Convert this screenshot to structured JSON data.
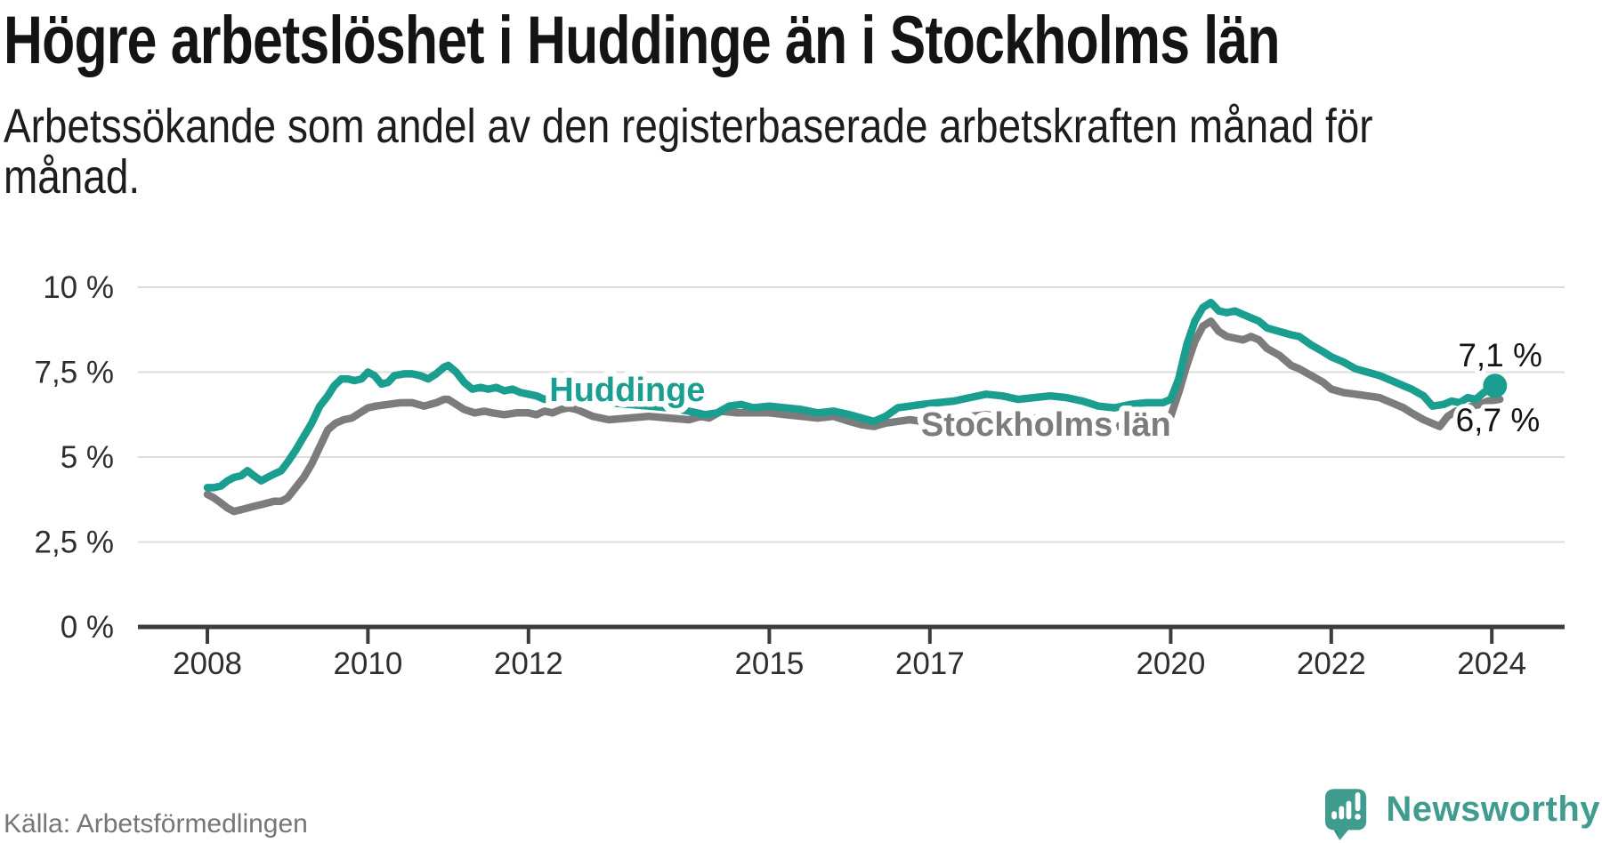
{
  "title": "Högre arbetslöshet i Huddinge än i Stockholms län",
  "subtitle": "Arbetssökande som andel av den registerbaserade arbetskraften månad för månad.",
  "source": "Källa: Arbetsförmedlingen",
  "branding": {
    "name": "Newsworthy",
    "icon": "newsworthy-logo-icon"
  },
  "colors": {
    "huddinge": "#1a9e8f",
    "stockholm": "#7c7c7c",
    "grid": "#dcdcdc",
    "axis": "#3c3c3c",
    "axis_text": "#2e2e2e",
    "annotation": "#141414",
    "brand": "#3f9c8e",
    "source_text": "#767676",
    "halo": "#ffffff"
  },
  "chart_data": {
    "type": "line",
    "unit": "%",
    "x_axis": {
      "tick_labels": [
        "2008",
        "2010",
        "2012",
        "2015",
        "2017",
        "2020",
        "2022",
        "2024"
      ],
      "tick_values": [
        2008,
        2010,
        2012,
        2015,
        2017,
        2020,
        2022,
        2024
      ],
      "range": [
        2008,
        2024.9
      ]
    },
    "y_axis": {
      "tick_labels": [
        "10 %",
        "7,5 %",
        "5 %",
        "2,5 %",
        "0 %"
      ],
      "tick_values": [
        10,
        7.5,
        5,
        2.5,
        0
      ],
      "range": [
        0,
        10
      ],
      "grid": true
    },
    "series": [
      {
        "name": "Stockholms län",
        "color": "#7c7c7c",
        "inline_label": {
          "text": "Stockholms län",
          "x": 2016.89,
          "y": 5.63
        },
        "end_annotation": "6,7 %",
        "last_value": 6.7,
        "points": [
          [
            2008.0,
            3.9
          ],
          [
            2008.08,
            3.8
          ],
          [
            2008.17,
            3.65
          ],
          [
            2008.25,
            3.5
          ],
          [
            2008.33,
            3.4
          ],
          [
            2008.42,
            3.45
          ],
          [
            2008.5,
            3.5
          ],
          [
            2008.58,
            3.55
          ],
          [
            2008.67,
            3.6
          ],
          [
            2008.75,
            3.65
          ],
          [
            2008.83,
            3.7
          ],
          [
            2008.92,
            3.7
          ],
          [
            2009.0,
            3.8
          ],
          [
            2009.1,
            4.1
          ],
          [
            2009.2,
            4.4
          ],
          [
            2009.3,
            4.8
          ],
          [
            2009.4,
            5.3
          ],
          [
            2009.5,
            5.8
          ],
          [
            2009.6,
            6.0
          ],
          [
            2009.7,
            6.1
          ],
          [
            2009.8,
            6.15
          ],
          [
            2009.9,
            6.3
          ],
          [
            2010.0,
            6.45
          ],
          [
            2010.1,
            6.5
          ],
          [
            2010.25,
            6.55
          ],
          [
            2010.4,
            6.6
          ],
          [
            2010.55,
            6.6
          ],
          [
            2010.7,
            6.5
          ],
          [
            2010.85,
            6.6
          ],
          [
            2010.95,
            6.7
          ],
          [
            2011.0,
            6.7
          ],
          [
            2011.1,
            6.55
          ],
          [
            2011.2,
            6.4
          ],
          [
            2011.33,
            6.3
          ],
          [
            2011.45,
            6.35
          ],
          [
            2011.55,
            6.3
          ],
          [
            2011.7,
            6.25
          ],
          [
            2011.85,
            6.3
          ],
          [
            2012.0,
            6.3
          ],
          [
            2012.1,
            6.25
          ],
          [
            2012.2,
            6.35
          ],
          [
            2012.3,
            6.3
          ],
          [
            2012.4,
            6.4
          ],
          [
            2012.5,
            6.45
          ],
          [
            2012.6,
            6.4
          ],
          [
            2012.8,
            6.2
          ],
          [
            2013.0,
            6.1
          ],
          [
            2013.25,
            6.15
          ],
          [
            2013.5,
            6.2
          ],
          [
            2013.75,
            6.15
          ],
          [
            2014.0,
            6.1
          ],
          [
            2014.15,
            6.2
          ],
          [
            2014.25,
            6.15
          ],
          [
            2014.4,
            6.35
          ],
          [
            2014.6,
            6.3
          ],
          [
            2014.8,
            6.3
          ],
          [
            2015.0,
            6.3
          ],
          [
            2015.2,
            6.25
          ],
          [
            2015.4,
            6.2
          ],
          [
            2015.6,
            6.15
          ],
          [
            2015.8,
            6.2
          ],
          [
            2016.0,
            6.05
          ],
          [
            2016.15,
            5.95
          ],
          [
            2016.3,
            5.9
          ],
          [
            2016.45,
            6.0
          ],
          [
            2016.6,
            6.05
          ],
          [
            2016.75,
            6.1
          ],
          [
            2016.9,
            6.05
          ],
          [
            2017.1,
            6.1
          ],
          [
            2017.3,
            6.15
          ],
          [
            2017.5,
            6.2
          ],
          [
            2017.7,
            6.25
          ],
          [
            2017.9,
            6.2
          ],
          [
            2018.1,
            6.1
          ],
          [
            2018.3,
            6.15
          ],
          [
            2018.5,
            6.15
          ],
          [
            2018.7,
            6.1
          ],
          [
            2018.9,
            6.0
          ],
          [
            2019.1,
            5.95
          ],
          [
            2019.3,
            5.9
          ],
          [
            2019.5,
            5.95
          ],
          [
            2019.7,
            6.0
          ],
          [
            2019.9,
            6.1
          ],
          [
            2020.0,
            6.2
          ],
          [
            2020.1,
            6.9
          ],
          [
            2020.2,
            7.7
          ],
          [
            2020.3,
            8.4
          ],
          [
            2020.4,
            8.85
          ],
          [
            2020.5,
            9.0
          ],
          [
            2020.6,
            8.7
          ],
          [
            2020.7,
            8.55
          ],
          [
            2020.8,
            8.5
          ],
          [
            2020.9,
            8.45
          ],
          [
            2021.0,
            8.55
          ],
          [
            2021.1,
            8.45
          ],
          [
            2021.2,
            8.2
          ],
          [
            2021.35,
            8.0
          ],
          [
            2021.5,
            7.7
          ],
          [
            2021.6,
            7.6
          ],
          [
            2021.75,
            7.4
          ],
          [
            2021.9,
            7.2
          ],
          [
            2022.0,
            7.0
          ],
          [
            2022.15,
            6.9
          ],
          [
            2022.3,
            6.85
          ],
          [
            2022.45,
            6.8
          ],
          [
            2022.6,
            6.75
          ],
          [
            2022.75,
            6.6
          ],
          [
            2022.9,
            6.45
          ],
          [
            2023.0,
            6.3
          ],
          [
            2023.15,
            6.1
          ],
          [
            2023.35,
            5.9
          ],
          [
            2023.45,
            6.2
          ],
          [
            2023.55,
            6.35
          ],
          [
            2023.65,
            6.4
          ],
          [
            2023.75,
            6.5
          ],
          [
            2023.85,
            6.55
          ],
          [
            2023.95,
            6.65
          ],
          [
            2024.1,
            6.7
          ]
        ]
      },
      {
        "name": "Huddinge",
        "color": "#1a9e8f",
        "inline_label": {
          "text": "Huddinge",
          "x": 2012.26,
          "y": 6.65
        },
        "end_annotation": "7,1 %",
        "last_value": 7.1,
        "end_dot": {
          "x": 2024.04,
          "y": 7.1
        },
        "points": [
          [
            2008.0,
            4.1
          ],
          [
            2008.08,
            4.1
          ],
          [
            2008.17,
            4.15
          ],
          [
            2008.25,
            4.3
          ],
          [
            2008.33,
            4.4
          ],
          [
            2008.42,
            4.45
          ],
          [
            2008.5,
            4.6
          ],
          [
            2008.58,
            4.45
          ],
          [
            2008.67,
            4.3
          ],
          [
            2008.75,
            4.4
          ],
          [
            2008.83,
            4.5
          ],
          [
            2008.92,
            4.6
          ],
          [
            2009.0,
            4.85
          ],
          [
            2009.1,
            5.2
          ],
          [
            2009.2,
            5.6
          ],
          [
            2009.3,
            6.0
          ],
          [
            2009.4,
            6.5
          ],
          [
            2009.5,
            6.8
          ],
          [
            2009.58,
            7.1
          ],
          [
            2009.67,
            7.3
          ],
          [
            2009.75,
            7.3
          ],
          [
            2009.83,
            7.25
          ],
          [
            2009.92,
            7.3
          ],
          [
            2010.0,
            7.5
          ],
          [
            2010.08,
            7.4
          ],
          [
            2010.17,
            7.15
          ],
          [
            2010.25,
            7.2
          ],
          [
            2010.33,
            7.4
          ],
          [
            2010.45,
            7.45
          ],
          [
            2010.55,
            7.45
          ],
          [
            2010.65,
            7.4
          ],
          [
            2010.75,
            7.3
          ],
          [
            2010.85,
            7.45
          ],
          [
            2010.95,
            7.65
          ],
          [
            2011.0,
            7.7
          ],
          [
            2011.1,
            7.5
          ],
          [
            2011.2,
            7.2
          ],
          [
            2011.3,
            7.0
          ],
          [
            2011.4,
            7.05
          ],
          [
            2011.5,
            7.0
          ],
          [
            2011.6,
            7.05
          ],
          [
            2011.7,
            6.95
          ],
          [
            2011.8,
            7.0
          ],
          [
            2011.9,
            6.9
          ],
          [
            2012.0,
            6.85
          ],
          [
            2012.1,
            6.8
          ],
          [
            2012.2,
            6.7
          ],
          [
            2012.35,
            6.75
          ],
          [
            2012.5,
            6.7
          ],
          [
            2012.75,
            6.65
          ],
          [
            2013.0,
            6.6
          ],
          [
            2013.25,
            6.55
          ],
          [
            2013.5,
            6.5
          ],
          [
            2013.75,
            6.45
          ],
          [
            2014.0,
            6.35
          ],
          [
            2014.2,
            6.25
          ],
          [
            2014.35,
            6.3
          ],
          [
            2014.5,
            6.5
          ],
          [
            2014.65,
            6.55
          ],
          [
            2014.8,
            6.45
          ],
          [
            2015.0,
            6.5
          ],
          [
            2015.2,
            6.45
          ],
          [
            2015.4,
            6.4
          ],
          [
            2015.6,
            6.3
          ],
          [
            2015.8,
            6.35
          ],
          [
            2016.0,
            6.25
          ],
          [
            2016.15,
            6.15
          ],
          [
            2016.3,
            6.05
          ],
          [
            2016.45,
            6.2
          ],
          [
            2016.6,
            6.45
          ],
          [
            2016.75,
            6.5
          ],
          [
            2016.9,
            6.55
          ],
          [
            2017.1,
            6.6
          ],
          [
            2017.3,
            6.65
          ],
          [
            2017.5,
            6.75
          ],
          [
            2017.7,
            6.85
          ],
          [
            2017.9,
            6.8
          ],
          [
            2018.1,
            6.7
          ],
          [
            2018.3,
            6.75
          ],
          [
            2018.5,
            6.8
          ],
          [
            2018.7,
            6.75
          ],
          [
            2018.9,
            6.65
          ],
          [
            2019.1,
            6.5
          ],
          [
            2019.3,
            6.45
          ],
          [
            2019.5,
            6.55
          ],
          [
            2019.7,
            6.6
          ],
          [
            2019.9,
            6.6
          ],
          [
            2020.0,
            6.7
          ],
          [
            2020.1,
            7.3
          ],
          [
            2020.2,
            8.3
          ],
          [
            2020.3,
            9.0
          ],
          [
            2020.4,
            9.4
          ],
          [
            2020.5,
            9.55
          ],
          [
            2020.6,
            9.3
          ],
          [
            2020.7,
            9.25
          ],
          [
            2020.8,
            9.3
          ],
          [
            2020.9,
            9.2
          ],
          [
            2021.0,
            9.1
          ],
          [
            2021.1,
            9.0
          ],
          [
            2021.2,
            8.8
          ],
          [
            2021.35,
            8.7
          ],
          [
            2021.5,
            8.6
          ],
          [
            2021.6,
            8.55
          ],
          [
            2021.75,
            8.3
          ],
          [
            2021.9,
            8.1
          ],
          [
            2022.0,
            7.95
          ],
          [
            2022.15,
            7.8
          ],
          [
            2022.3,
            7.6
          ],
          [
            2022.45,
            7.5
          ],
          [
            2022.6,
            7.4
          ],
          [
            2022.75,
            7.25
          ],
          [
            2022.9,
            7.1
          ],
          [
            2023.0,
            7.0
          ],
          [
            2023.15,
            6.8
          ],
          [
            2023.26,
            6.5
          ],
          [
            2023.4,
            6.55
          ],
          [
            2023.5,
            6.65
          ],
          [
            2023.6,
            6.6
          ],
          [
            2023.7,
            6.75
          ],
          [
            2023.8,
            6.7
          ],
          [
            2023.9,
            6.9
          ],
          [
            2024.04,
            7.1
          ]
        ]
      }
    ],
    "annotations": [
      {
        "text": "7,1 %",
        "x": 2023.58,
        "y": 7.67,
        "series": "Huddinge"
      },
      {
        "text": "6,7 %",
        "x": 2023.55,
        "y": 5.76,
        "series": "Stockholms län"
      }
    ]
  }
}
